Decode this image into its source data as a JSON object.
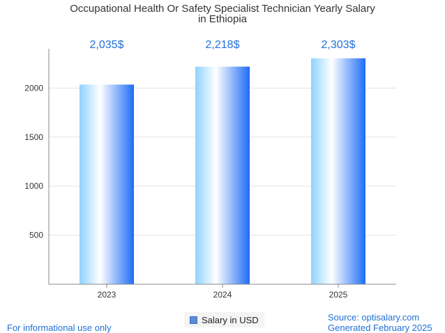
{
  "chart_data": {
    "type": "bar",
    "title_lines": [
      "Occupational Health Or Safety Specialist Technician Yearly Salary",
      "in Ethiopia"
    ],
    "categories": [
      "2023",
      "2024",
      "2025"
    ],
    "series": [
      {
        "name": "Salary in USD",
        "values": [
          2035,
          2218,
          2303
        ]
      }
    ],
    "data_labels": [
      "2,035$",
      "2,218$",
      "2,303$"
    ],
    "y_ticks": [
      500,
      1000,
      1500,
      2000
    ],
    "ylim": [
      0,
      2400
    ],
    "grid": true,
    "legend_position": "bottom-center"
  },
  "footer": {
    "left": "For informational use only",
    "source": "Source: optisalary.com",
    "generated": "Generated February 2025"
  },
  "colors": {
    "label": "#1f6fd6",
    "bar_light": "#a8dcff",
    "bar_white": "#ffffff",
    "bar_dark": "#1e6cf5"
  }
}
